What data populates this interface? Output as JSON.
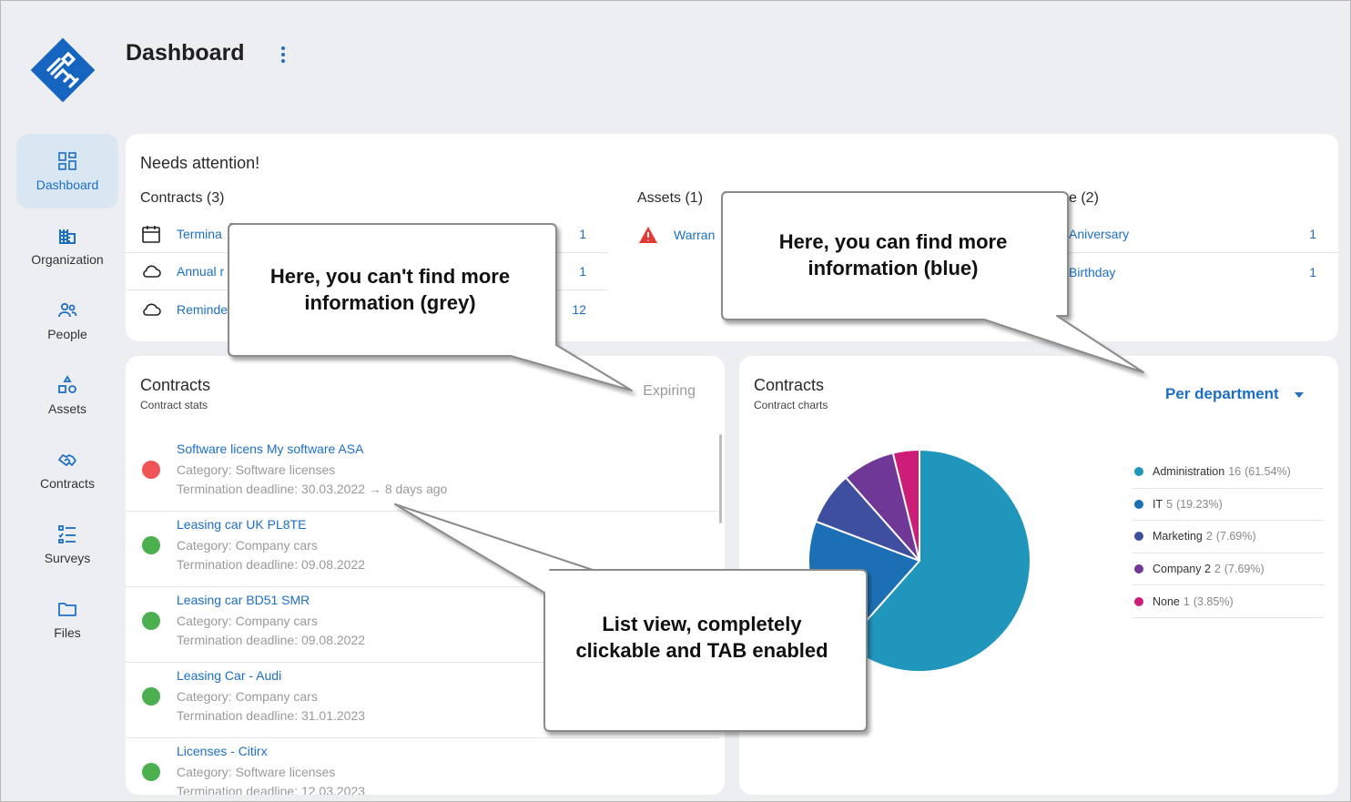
{
  "header": {
    "title": "Dashboard"
  },
  "sidebar": {
    "items": [
      {
        "label": "Dashboard",
        "icon": "dashboard-icon",
        "active": true
      },
      {
        "label": "Organization",
        "icon": "building-icon"
      },
      {
        "label": "People",
        "icon": "people-icon"
      },
      {
        "label": "Assets",
        "icon": "assets-icon"
      },
      {
        "label": "Contracts",
        "icon": "handshake-icon"
      },
      {
        "label": "Surveys",
        "icon": "checklist-icon"
      },
      {
        "label": "Files",
        "icon": "folder-icon"
      }
    ]
  },
  "attention": {
    "title": "Needs attention!",
    "contracts": {
      "title": "Contracts (3)",
      "rows": [
        {
          "label": "Termina",
          "count": "1",
          "icon": "calendar-icon"
        },
        {
          "label": "Annual r",
          "count": "1",
          "icon": "cloud-icon"
        },
        {
          "label": "Reminde",
          "count": "12",
          "icon": "cloud-icon"
        }
      ]
    },
    "assets": {
      "title": "Assets (1)",
      "rows": [
        {
          "label": "Warran",
          "icon": "warning-icon"
        }
      ]
    },
    "people": {
      "title": "e (2)",
      "rows": [
        {
          "label": "Aniversary",
          "count": "1"
        },
        {
          "label": "Birthday",
          "count": "1"
        }
      ]
    }
  },
  "contracts_list": {
    "title": "Contracts",
    "subtitle": "Contract stats",
    "filter": "Expiring",
    "items": [
      {
        "title": "Software licens My software ASA",
        "category": "Category: Software licenses",
        "deadline": "Termination deadline: 30.03.2022 → 8 days ago",
        "status_color": "#f05454"
      },
      {
        "title": "Leasing car UK PL8TE",
        "category": "Category: Company cars",
        "deadline": "Termination deadline: 09.08.2022",
        "status_color": "#4caf50"
      },
      {
        "title": "Leasing car BD51 SMR",
        "category": "Category: Company cars",
        "deadline": "Termination deadline: 09.08.2022",
        "status_color": "#4caf50"
      },
      {
        "title": "Leasing Car - Audi",
        "category": "Category: Company cars",
        "deadline": "Termination deadline: 31.01.2023",
        "status_color": "#4caf50"
      },
      {
        "title": "Licenses - Citirx",
        "category": "Category: Software licenses",
        "deadline": "Termination deadline: 12.03.2023",
        "status_color": "#4caf50"
      }
    ]
  },
  "contracts_chart": {
    "title": "Contracts",
    "subtitle": "Contract charts",
    "selector": "Per department"
  },
  "chart_data": {
    "type": "pie",
    "series": [
      {
        "name": "Administration",
        "value": 16,
        "pct": "(61.54%)",
        "color": "#2196bd"
      },
      {
        "name": "IT",
        "value": 5,
        "pct": "(19.23%)",
        "color": "#1a6fb5"
      },
      {
        "name": "Marketing",
        "value": 2,
        "pct": "(7.69%)",
        "color": "#3f4fa0"
      },
      {
        "name": "Company 2",
        "value": 2,
        "pct": "(7.69%)",
        "color": "#6f3796"
      },
      {
        "name": "None",
        "value": 1,
        "pct": "(3.85%)",
        "color": "#cc1d78"
      }
    ]
  },
  "callouts": {
    "grey": "Here, you can't find more information (grey)",
    "blue": "Here, you can find more information (blue)",
    "list": "List view, completely clickable and TAB enabled"
  }
}
